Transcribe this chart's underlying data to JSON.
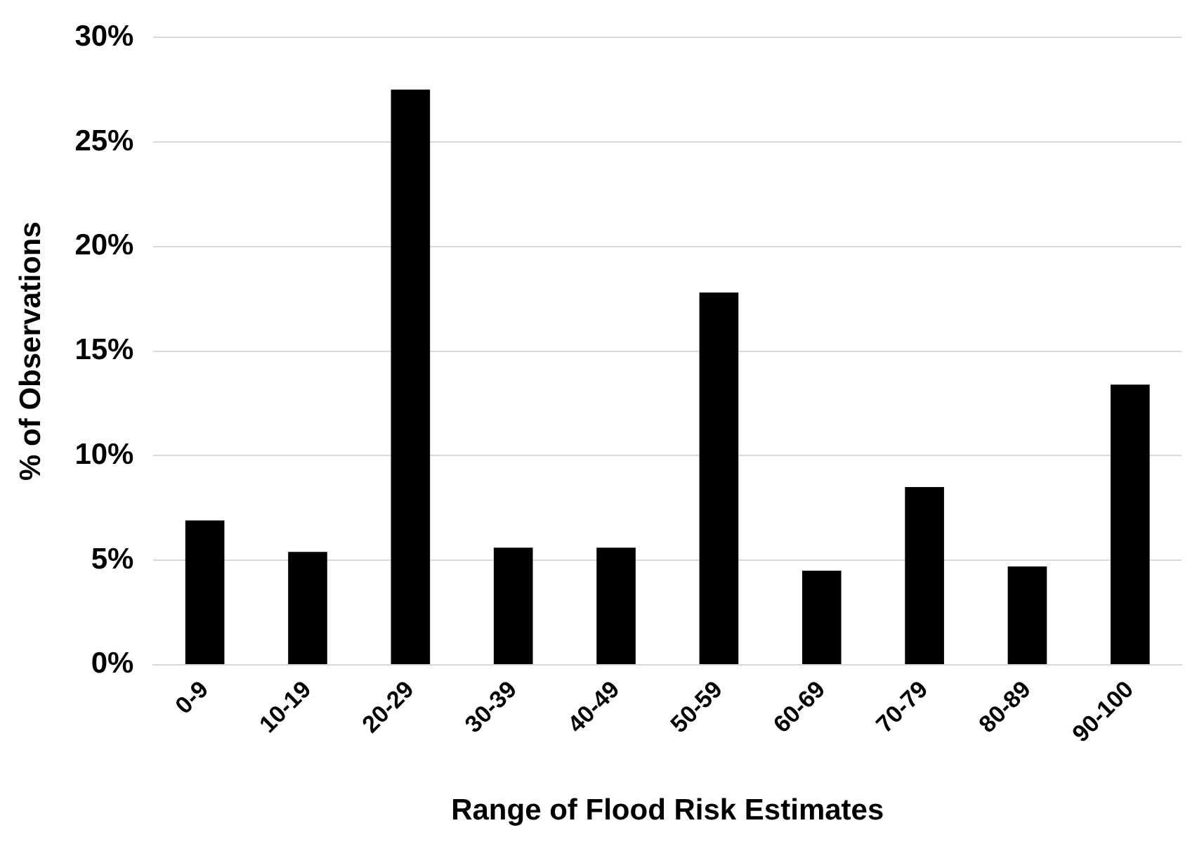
{
  "chart_data": {
    "type": "bar",
    "xlabel": "Range of Flood Risk Estimates",
    "ylabel": "% of Observations",
    "categories": [
      "0-9",
      "10-19",
      "20-29",
      "30-39",
      "40-49",
      "50-59",
      "60-69",
      "70-79",
      "80-89",
      "90-100"
    ],
    "values": [
      6.9,
      5.4,
      27.5,
      5.6,
      5.6,
      17.8,
      4.5,
      8.5,
      4.7,
      13.4
    ],
    "color": "#000000",
    "ylim": [
      0,
      30
    ],
    "yticks": [
      {
        "value": 0,
        "label": "0%"
      },
      {
        "value": 5,
        "label": "5%"
      },
      {
        "value": 10,
        "label": "10%"
      },
      {
        "value": 15,
        "label": "15%"
      },
      {
        "value": 20,
        "label": "20%"
      },
      {
        "value": 25,
        "label": "25%"
      },
      {
        "value": 30,
        "label": "30%"
      }
    ],
    "grid": "y",
    "legend": false
  }
}
